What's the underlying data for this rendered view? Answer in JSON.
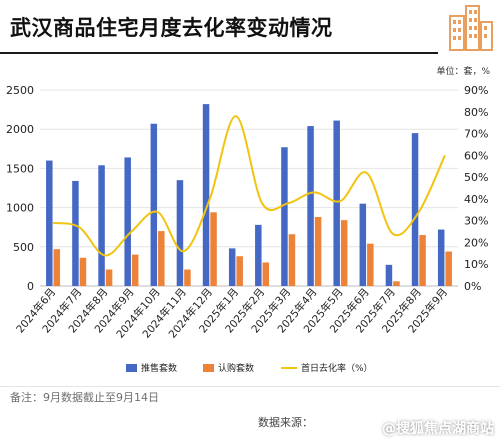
{
  "title": "武汉商品住宅月度去化率变动情况",
  "units_label": "单位：套，%",
  "footnote": "备注：9月数据截止至9月14日",
  "source": "数据来源：",
  "watermark": "@搜狐焦点湖商站",
  "colors": {
    "supply": "#4468c4",
    "subscription": "#ec8339",
    "rate": "#f2c40f"
  },
  "chart_data": {
    "type": "bar",
    "categories": [
      "2024年6月",
      "2024年7月",
      "2024年8月",
      "2024年9月",
      "2024年10月",
      "2024年11月",
      "2024年12月",
      "2025年1月",
      "2025年2月",
      "2025年3月",
      "2025年4月",
      "2025年5月",
      "2025年6月",
      "2025年7月",
      "2025年8月",
      "2025年9月"
    ],
    "series": [
      {
        "name": "推售套数",
        "kind": "bar",
        "axis": "left",
        "color": "#4468c4",
        "values": [
          1600,
          1340,
          1540,
          1640,
          2070,
          1350,
          2320,
          480,
          780,
          1770,
          2040,
          2110,
          1050,
          270,
          1950,
          720
        ]
      },
      {
        "name": "认购套数",
        "kind": "bar",
        "axis": "left",
        "color": "#ec8339",
        "values": [
          470,
          360,
          210,
          400,
          700,
          210,
          940,
          380,
          300,
          660,
          880,
          840,
          540,
          60,
          650,
          440
        ]
      },
      {
        "name": "首日去化率（%）",
        "kind": "line",
        "axis": "right",
        "color": "#f2c40f",
        "values": [
          29,
          27,
          14,
          25,
          34,
          16,
          40,
          78,
          38,
          38,
          43,
          39,
          52,
          24,
          34,
          60
        ]
      }
    ],
    "ylim_left": [
      0,
      2500
    ],
    "yticks_left": [
      0,
      500,
      1000,
      1500,
      2000,
      2500
    ],
    "ylim_right": [
      0,
      90
    ],
    "yticks_right": [
      "0%",
      "10%",
      "20%",
      "30%",
      "40%",
      "50%",
      "60%",
      "70%",
      "80%",
      "90%"
    ],
    "grid": true,
    "legend_position": "bottom"
  }
}
